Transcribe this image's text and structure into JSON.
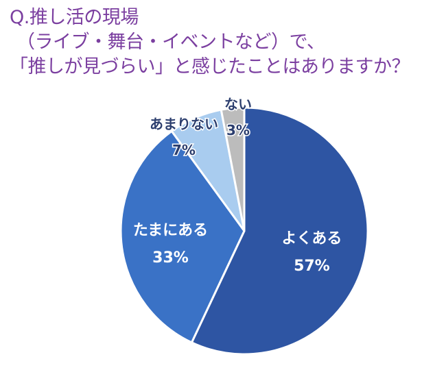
{
  "question": {
    "line1": "Q.推し活の現場",
    "line2": "（ライブ・舞台・イベントなど）で、",
    "line3": "「推しが見づらい」と感じたことはありますか？"
  },
  "colors": {
    "title": "#7b3fa0",
    "slices": [
      "#2e55a3",
      "#3a72c6",
      "#a9ccef",
      "#bcbcbc"
    ],
    "label_dark_bg": "#ffffff",
    "label_light_bg": "#2c3e6e"
  },
  "chart_data": {
    "type": "pie",
    "start_angle_deg": 0,
    "direction": "clockwise",
    "slices": [
      {
        "label": "よくある",
        "value": 57,
        "value_text": "57%"
      },
      {
        "label": "たまにある",
        "value": 33,
        "value_text": "33%"
      },
      {
        "label": "あまりない",
        "value": 7,
        "value_text": "7%"
      },
      {
        "label": "ない",
        "value": 3,
        "value_text": "3%"
      }
    ]
  }
}
